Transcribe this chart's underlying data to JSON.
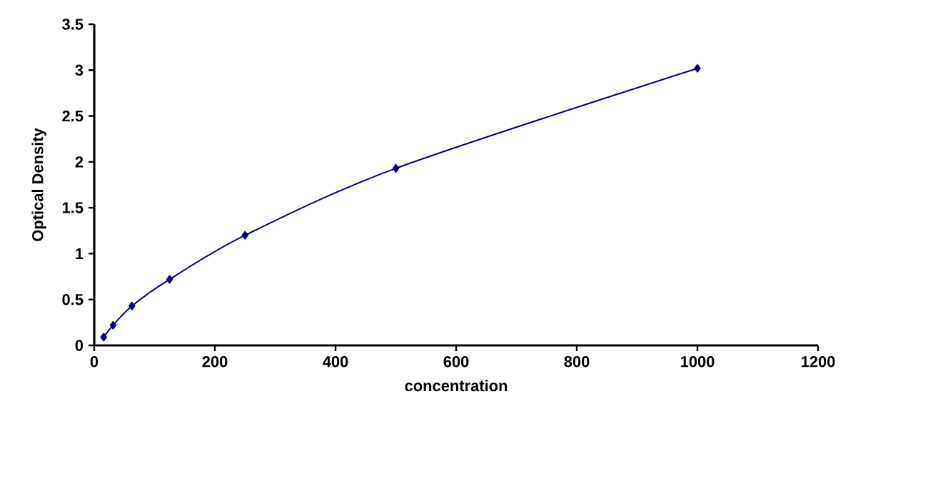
{
  "chart_data": {
    "type": "line",
    "xlabel": "concentration",
    "ylabel": "Optical Density",
    "x": [
      15.6,
      31.25,
      62.5,
      125,
      250,
      500,
      1000
    ],
    "series": [
      {
        "color": "#000080",
        "values": [
          0.09,
          0.22,
          0.43,
          0.72,
          1.2,
          1.93,
          3.02
        ]
      }
    ],
    "xlim": [
      0,
      1200
    ],
    "ylim": [
      0,
      3.5
    ],
    "xticks": [
      0,
      200,
      400,
      600,
      800,
      1000,
      1200
    ],
    "yticks": [
      0,
      0.5,
      1,
      1.5,
      2,
      2.5,
      3,
      3.5
    ],
    "marker": "diamond",
    "line_style": "solid"
  }
}
